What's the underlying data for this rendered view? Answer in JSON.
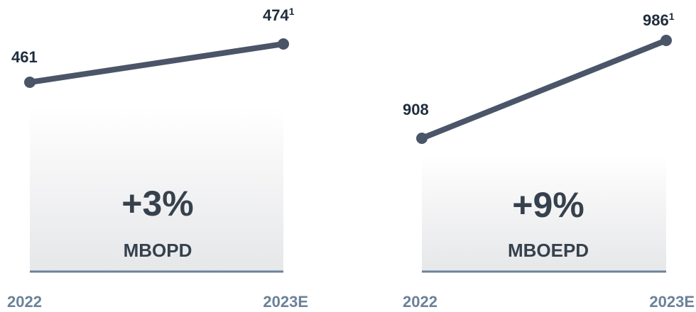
{
  "chart_data": [
    {
      "type": "line",
      "categories": [
        "2022",
        "2023E"
      ],
      "series": [
        {
          "values": [
            461,
            474
          ]
        }
      ],
      "data_labels": [
        "461",
        "474"
      ],
      "footnote_marks": [
        "",
        "1"
      ],
      "change": "+3%",
      "unit": "MBOPD",
      "colors": {
        "line": "#4a5568",
        "baseline": "#6b8299",
        "label": "#1f2d3d",
        "change_text": "#36414d"
      }
    },
    {
      "type": "line",
      "categories": [
        "2022",
        "2023E"
      ],
      "series": [
        {
          "values": [
            908,
            986
          ]
        }
      ],
      "data_labels": [
        "908",
        "986"
      ],
      "footnote_marks": [
        "",
        "1"
      ],
      "change": "+9%",
      "unit": "MBOEPD",
      "colors": {
        "line": "#4a5568",
        "baseline": "#6b8299",
        "label": "#1f2d3d",
        "change_text": "#36414d"
      }
    }
  ]
}
